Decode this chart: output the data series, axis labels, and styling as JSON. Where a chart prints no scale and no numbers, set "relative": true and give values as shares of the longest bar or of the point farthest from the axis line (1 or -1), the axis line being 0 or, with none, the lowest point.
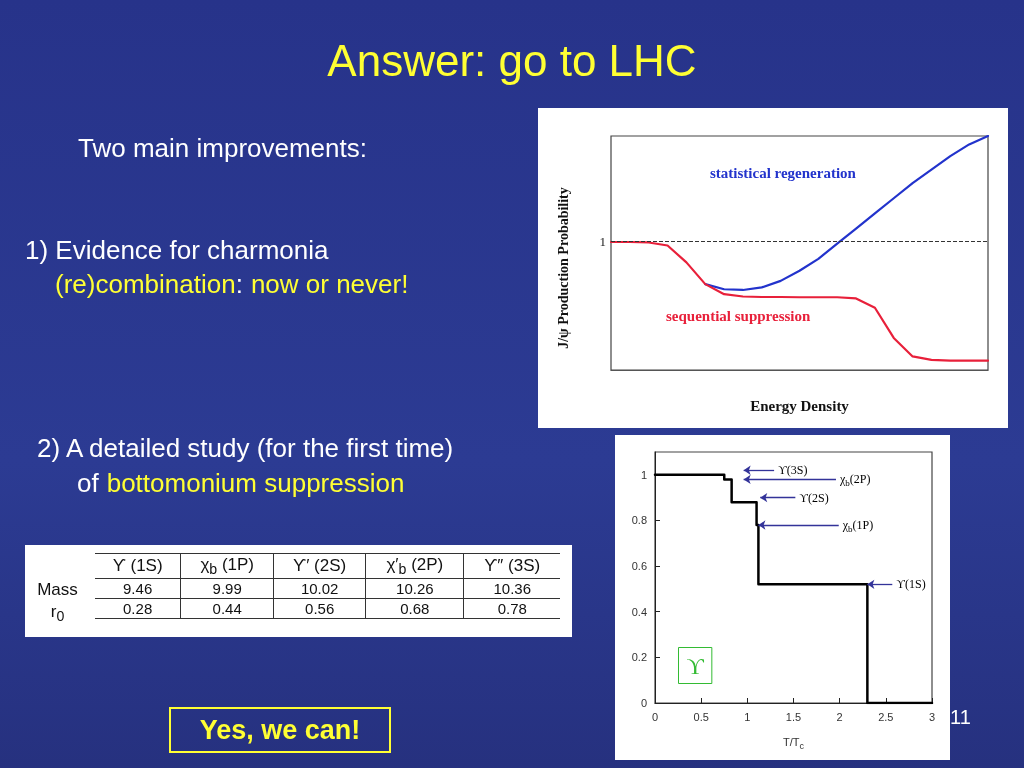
{
  "chart_data": [
    {
      "type": "other",
      "title": "Answer: go to LHC",
      "annotations": [
        "Two main improvements:",
        "1) Evidence for charmonia",
        "(re)combination",
        ":",
        "now or never!",
        "2) A detailed study (for the first time)",
        "of",
        "bottomonium suppression",
        "Yes, we can!",
        "11"
      ]
    },
    {
      "type": "heatmap",
      "data_labels": true,
      "categories": [
        "ϒ (1S)",
        "χ$_{b}$ (1P)",
        "ϒ′ (2S)",
        "χ′$_{b}$ (2P)",
        "ϒ″ (3S)"
      ],
      "y_categories": [
        "Mass",
        "r$_{0}$"
      ],
      "cells": [
        [
          9.46,
          9.99,
          10.02,
          10.26,
          10.36
        ],
        [
          0.28,
          0.44,
          0.56,
          0.68,
          0.78
        ]
      ]
    },
    {
      "type": "line",
      "relative": true,
      "xlabel": "Energy Density",
      "ylabel": "J/ψ Production Probability",
      "grid": false,
      "line_style": "solid",
      "categories": [
        null,
        null,
        null,
        null,
        null,
        null,
        null,
        null,
        null,
        null,
        null,
        null,
        null,
        null,
        null,
        null,
        null,
        null,
        null,
        null,
        null
      ],
      "series": [
        {
          "name": "statistical regeneration",
          "color": "#2233cc",
          "values": [
            null,
            null,
            null,
            null,
            null,
            0.367,
            0.345,
            0.342,
            0.353,
            0.381,
            0.424,
            0.475,
            0.54,
            0.604,
            0.669,
            0.734,
            0.799,
            0.856,
            0.914,
            0.964,
            1.0
          ]
        },
        {
          "name": "sequential suppression",
          "color": "#e8203a",
          "values": [
            0.547,
            0.547,
            0.545,
            0.532,
            0.46,
            0.367,
            0.324,
            0.314,
            0.312,
            0.312,
            0.311,
            0.311,
            0.311,
            0.306,
            0.266,
            0.137,
            0.058,
            0.043,
            0.04,
            0.04,
            0.04
          ]
        }
      ],
      "ref_lines": [
        {
          "axis": "y",
          "value": 0.547,
          "label": "1",
          "color": "#333333",
          "line_style": "dashed"
        }
      ]
    },
    {
      "type": "step",
      "xlabel": "T/T$_{c}$",
      "grid": false,
      "marker": "none",
      "x": [
        0,
        0.75,
        0.83,
        1.1,
        1.12,
        2.3,
        3
      ],
      "series": [
        {
          "color": "#000000",
          "values": [
            1,
            0.98,
            0.88,
            0.78,
            0.52,
            0,
            0
          ]
        }
      ],
      "xlim": [
        0,
        3
      ],
      "xticks": [
        0,
        0.5,
        1,
        1.5,
        2,
        2.5,
        3
      ],
      "ylim": [
        0,
        1.1
      ],
      "yticks": [
        0,
        0.2,
        0.4,
        0.6,
        0.8,
        1
      ],
      "annotations": [
        "ϒ(3S)",
        "χ$_{b}$(2P)",
        "ϒ(2S)",
        {
          "text": "χ$_{b}$(1P)",
          "x": 1.12,
          "y": 0.78
        },
        {
          "text": "ϒ(1S)",
          "x": 2.3,
          "y": 0.52
        },
        "ϒ"
      ]
    }
  ]
}
